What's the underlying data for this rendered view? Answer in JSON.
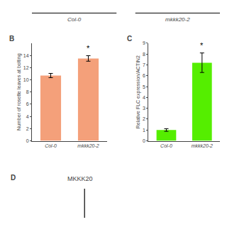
{
  "chart_data": [
    {
      "type": "bar",
      "title": "B",
      "categories": [
        "Col-0",
        "mkkk20-2"
      ],
      "values": [
        10.7,
        13.5
      ],
      "errors": [
        0.35,
        0.45
      ],
      "color": "#F4A07A",
      "ylabel": "Number of rosette leaves at bolting",
      "ylim": [
        0,
        16
      ],
      "yticks": [
        0,
        2,
        4,
        6,
        8,
        10,
        12,
        14
      ],
      "grid": false,
      "annotations": [
        {
          "x": "mkkk20-2",
          "y": 14.2,
          "text": "*"
        }
      ]
    },
    {
      "type": "bar",
      "title": "C",
      "categories": [
        "Col-0",
        "mkkk20-2"
      ],
      "values": [
        1.0,
        7.2
      ],
      "errors": [
        0.12,
        0.9
      ],
      "color": "#55EE00",
      "ylabel": "Relative FLC expression/ACTIN2",
      "ylim": [
        0,
        9
      ],
      "yticks": [
        0,
        1,
        2,
        3,
        4,
        5,
        6,
        7,
        8,
        9
      ],
      "grid": false,
      "annotations": [
        {
          "x": "mkkk20-2",
          "y": 8.3,
          "text": "*"
        }
      ]
    }
  ],
  "annotations": [
    {
      "text": "Col-0"
    },
    {
      "text": "mkkk20-2"
    },
    {
      "text": "D"
    },
    {
      "text": "MKKK20"
    }
  ]
}
